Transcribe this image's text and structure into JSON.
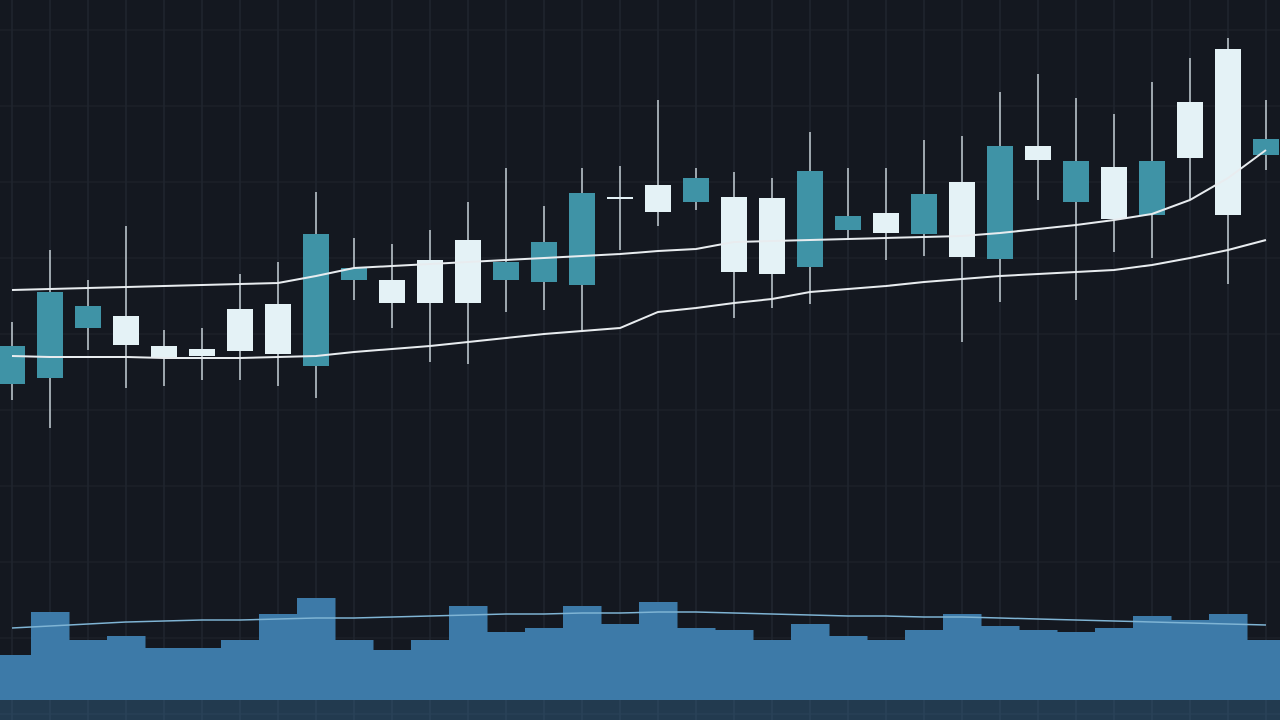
{
  "chart_data": {
    "type": "candlestick",
    "categories": [
      null,
      null,
      null,
      null,
      null,
      null,
      null,
      null,
      null,
      null,
      null,
      null,
      null,
      null,
      null,
      null,
      null,
      null,
      null,
      null,
      null,
      null,
      null,
      null,
      null,
      null,
      null,
      null,
      null,
      null,
      null,
      null,
      null,
      null
    ],
    "open": [
      374,
      428,
      414,
      375,
      362,
      364,
      369,
      366,
      486,
      452,
      417,
      417,
      417,
      458,
      478,
      527,
      521,
      508,
      542,
      448,
      446,
      549,
      504,
      487,
      526,
      463,
      574,
      560,
      559,
      501,
      559,
      562,
      505,
      581
    ],
    "high": [
      398,
      470,
      440,
      494,
      390,
      392,
      446,
      458,
      528,
      482,
      476,
      490,
      518,
      552,
      514,
      552,
      554,
      620,
      552,
      548,
      542,
      588,
      552,
      552,
      580,
      584,
      628,
      646,
      622,
      606,
      638,
      662,
      682,
      620
    ],
    "low": [
      320,
      292,
      370,
      332,
      334,
      340,
      340,
      334,
      322,
      420,
      392,
      358,
      356,
      408,
      410,
      388,
      470,
      494,
      510,
      402,
      412,
      416,
      480,
      460,
      464,
      378,
      418,
      520,
      420,
      468,
      462,
      520,
      436,
      550
    ],
    "close": [
      336,
      342,
      392,
      404,
      374,
      371,
      411,
      416,
      354,
      440,
      440,
      460,
      480,
      440,
      438,
      435,
      523,
      535,
      518,
      523,
      522,
      453,
      490,
      507,
      486,
      538,
      461,
      574,
      518,
      553,
      505,
      618,
      671,
      565
    ],
    "rising_color": "#e4f2f6",
    "falling_color": "#3f93a6",
    "ylim": [
      0,
      720
    ],
    "grid": true,
    "moving_averages": [
      {
        "color": "#e8ecef",
        "values": [
          430,
          431,
          432,
          433,
          434,
          435,
          436,
          437,
          444,
          452,
          454,
          456,
          458,
          460,
          462,
          464,
          466,
          469,
          471,
          478,
          479,
          480,
          481,
          482,
          483,
          484,
          487,
          491,
          495,
          500,
          506,
          520,
          542,
          570
        ]
      },
      {
        "color": "#e8ecef",
        "values": [
          364,
          363,
          363,
          363,
          362,
          362,
          362,
          363,
          364,
          368,
          371,
          374,
          378,
          382,
          386,
          389,
          392,
          408,
          412,
          417,
          421,
          428,
          431,
          434,
          438,
          441,
          444,
          446,
          448,
          450,
          455,
          462,
          470,
          480
        ]
      }
    ],
    "volume": {
      "color": "#3d7aa8",
      "ylim": [
        0,
        120
      ],
      "values": [
        45,
        88,
        60,
        64,
        52,
        52,
        60,
        86,
        102,
        60,
        50,
        60,
        94,
        68,
        72,
        94,
        76,
        98,
        72,
        70,
        60,
        76,
        64,
        60,
        70,
        86,
        74,
        70,
        68,
        72,
        84,
        80,
        86,
        60
      ],
      "ma": {
        "color": "#7fb4d4",
        "values": [
          72,
          74,
          76,
          78,
          79,
          80,
          80,
          81,
          82,
          82,
          83,
          84,
          85,
          86,
          86,
          87,
          87,
          88,
          88,
          87,
          86,
          85,
          84,
          84,
          83,
          83,
          82,
          81,
          80,
          79,
          78,
          77,
          76,
          75
        ]
      }
    }
  }
}
